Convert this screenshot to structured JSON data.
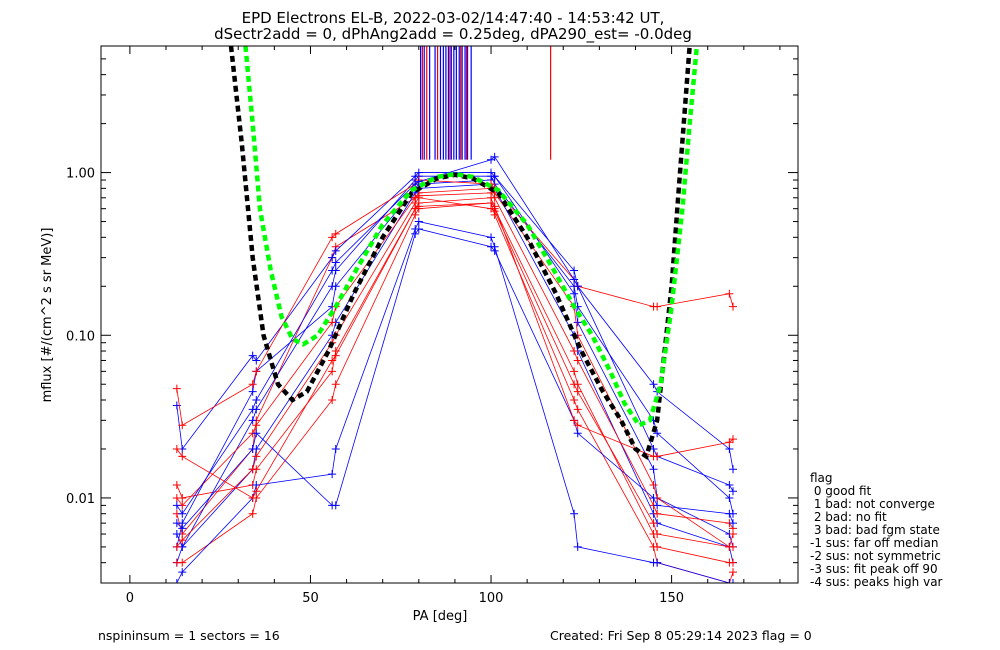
{
  "header": {
    "line1": "EPD Electrons EL-B, 2022-03-02/14:47:40 - 14:53:42 UT,",
    "line2": "dSectr2add = 0, dPhAng2add = 0.25deg, dPA290_est=  -0.0deg"
  },
  "footer": {
    "left": "nspininsum =  1  sectors = 16",
    "right": "Created: Fri Sep  8 05:29:14 2023   flag = 0"
  },
  "legend": {
    "title": "flag",
    "items": [
      " 0 good fit",
      " 1 bad: not converge",
      " 2 bad: no fit",
      " 3 bad: bad fgm state",
      "-1 sus: far off median",
      "-2 sus: not symmetric",
      "-3 sus: fit peak off 90",
      "-4 sus: peaks high var"
    ]
  },
  "colors": {
    "red": "#ff0000",
    "blue": "#0000ff",
    "black_fit": "#000000",
    "green_fit": "#00ff00"
  },
  "chart_data": {
    "type": "line",
    "xlabel": "PA [deg]",
    "ylabel": "mflux [#/(cm^2 s sr MeV)]",
    "xlim": [
      -8,
      185
    ],
    "ylim": [
      0.003,
      6
    ],
    "yscale": "log",
    "xticks": [
      0,
      50,
      100,
      150
    ],
    "yticks": [
      {
        "value": 0.01,
        "label": "0.01"
      },
      {
        "value": 0.1,
        "label": "0.10"
      },
      {
        "value": 1.0,
        "label": "1.00"
      }
    ],
    "pa_bins": [
      13,
      14.5,
      34,
      35,
      56,
      57,
      79,
      80,
      100,
      101,
      123,
      124,
      145,
      146,
      166,
      167
    ],
    "series": [
      {
        "color": "blue",
        "values": [
          0.005,
          0.007,
          0.045,
          0.06,
          0.15,
          0.2,
          0.8,
          0.85,
          0.9,
          0.95,
          0.18,
          0.12,
          0.015,
          0.01,
          0.006,
          0.005
        ]
      },
      {
        "color": "red",
        "values": [
          0.008,
          0.006,
          0.02,
          0.03,
          0.3,
          0.35,
          0.7,
          0.75,
          0.8,
          0.75,
          0.15,
          0.1,
          0.012,
          0.01,
          0.005,
          0.006
        ]
      },
      {
        "color": "blue",
        "values": [
          0.004,
          0.005,
          0.015,
          0.02,
          0.1,
          0.12,
          0.75,
          0.8,
          0.85,
          0.8,
          0.1,
          0.08,
          0.008,
          0.007,
          0.005,
          0.004
        ]
      },
      {
        "color": "red",
        "values": [
          0.012,
          0.01,
          0.012,
          0.015,
          0.06,
          0.08,
          0.6,
          0.65,
          0.7,
          0.6,
          0.06,
          0.05,
          0.006,
          0.005,
          0.004,
          0.004
        ]
      },
      {
        "color": "blue",
        "values": [
          0.006,
          0.005,
          0.03,
          0.035,
          0.2,
          0.25,
          0.9,
          0.95,
          0.95,
          0.85,
          0.2,
          0.15,
          0.03,
          0.025,
          0.01,
          0.008
        ]
      },
      {
        "color": "red",
        "values": [
          0.004,
          0.004,
          0.008,
          0.01,
          0.04,
          0.05,
          0.55,
          0.6,
          0.65,
          0.55,
          0.04,
          0.035,
          0.005,
          0.004,
          0.003,
          0.0035
        ]
      },
      {
        "color": "blue",
        "values": [
          0.037,
          0.02,
          0.075,
          0.07,
          0.3,
          0.33,
          0.95,
          1.0,
          1.0,
          0.95,
          0.25,
          0.2,
          0.05,
          0.045,
          0.02,
          0.015
        ]
      },
      {
        "color": "red",
        "values": [
          0.047,
          0.028,
          0.05,
          0.06,
          0.4,
          0.42,
          0.85,
          0.9,
          0.85,
          0.8,
          0.22,
          0.2,
          0.15,
          0.15,
          0.18,
          0.15
        ]
      },
      {
        "color": "blue",
        "values": [
          0.003,
          0.0035,
          0.01,
          0.012,
          0.014,
          0.02,
          0.45,
          0.5,
          0.4,
          0.35,
          0.008,
          0.005,
          0.004,
          0.004,
          0.003,
          0.003
        ]
      },
      {
        "color": "red",
        "values": [
          0.01,
          0.009,
          0.025,
          0.028,
          0.12,
          0.15,
          0.7,
          0.72,
          0.75,
          0.7,
          0.08,
          0.07,
          0.009,
          0.008,
          0.007,
          0.0065
        ]
      },
      {
        "color": "blue",
        "values": [
          0.009,
          0.008,
          0.035,
          0.04,
          0.25,
          0.28,
          0.85,
          0.88,
          1.2,
          1.25,
          0.22,
          0.2,
          0.02,
          0.018,
          0.012,
          0.011
        ]
      },
      {
        "color": "red",
        "values": [
          0.005,
          0.0055,
          0.015,
          0.018,
          0.09,
          0.1,
          0.65,
          0.7,
          0.6,
          0.58,
          0.05,
          0.045,
          0.007,
          0.006,
          0.005,
          0.005
        ]
      },
      {
        "color": "blue",
        "values": [
          0.007,
          0.0065,
          0.02,
          0.025,
          0.009,
          0.009,
          0.42,
          0.45,
          0.35,
          0.33,
          0.03,
          0.025,
          0.01,
          0.009,
          0.008,
          0.007
        ]
      },
      {
        "color": "red",
        "values": [
          0.02,
          0.018,
          0.01,
          0.011,
          0.07,
          0.075,
          0.6,
          0.62,
          0.65,
          0.62,
          0.03,
          0.028,
          0.018,
          0.018,
          0.022,
          0.023
        ]
      }
    ],
    "fits": [
      {
        "color": "black_fit",
        "points": [
          [
            28,
            6
          ],
          [
            31,
            1.5
          ],
          [
            34,
            0.3
          ],
          [
            37,
            0.1
          ],
          [
            41,
            0.05
          ],
          [
            45,
            0.04
          ],
          [
            49,
            0.045
          ],
          [
            55,
            0.08
          ],
          [
            62,
            0.18
          ],
          [
            70,
            0.4
          ],
          [
            78,
            0.75
          ],
          [
            85,
            0.92
          ],
          [
            90,
            0.97
          ],
          [
            95,
            0.92
          ],
          [
            102,
            0.75
          ],
          [
            110,
            0.4
          ],
          [
            118,
            0.18
          ],
          [
            125,
            0.08
          ],
          [
            131,
            0.045
          ],
          [
            136,
            0.03
          ],
          [
            140,
            0.02
          ],
          [
            143,
            0.018
          ],
          [
            146,
            0.03
          ],
          [
            150,
            0.2
          ],
          [
            152,
            0.8
          ],
          [
            155,
            6
          ]
        ]
      },
      {
        "color": "green_fit",
        "points": [
          [
            32,
            6
          ],
          [
            34,
            2.0
          ],
          [
            36,
            0.6
          ],
          [
            39,
            0.25
          ],
          [
            42,
            0.13
          ],
          [
            45,
            0.095
          ],
          [
            48,
            0.088
          ],
          [
            52,
            0.1
          ],
          [
            57,
            0.15
          ],
          [
            63,
            0.26
          ],
          [
            70,
            0.48
          ],
          [
            78,
            0.78
          ],
          [
            85,
            0.94
          ],
          [
            90,
            0.98
          ],
          [
            95,
            0.94
          ],
          [
            102,
            0.78
          ],
          [
            110,
            0.48
          ],
          [
            117,
            0.26
          ],
          [
            123,
            0.15
          ],
          [
            128,
            0.1
          ],
          [
            133,
            0.06
          ],
          [
            137,
            0.038
          ],
          [
            141,
            0.028
          ],
          [
            144,
            0.03
          ],
          [
            147,
            0.05
          ],
          [
            150,
            0.15
          ],
          [
            153,
            0.6
          ],
          [
            155,
            2.0
          ],
          [
            157,
            6
          ]
        ]
      }
    ],
    "spikes": [
      {
        "color": "blue",
        "x": [
          80.5,
          81.5,
          83,
          84.5,
          86,
          86.8,
          87.5,
          88.2,
          89,
          89.7,
          90.4,
          91.2,
          92,
          92.8,
          93.5,
          94.5
        ]
      },
      {
        "color": "red",
        "x": [
          81,
          82.2,
          85.2,
          88.6,
          91.6,
          93.2,
          116.5
        ]
      }
    ]
  }
}
